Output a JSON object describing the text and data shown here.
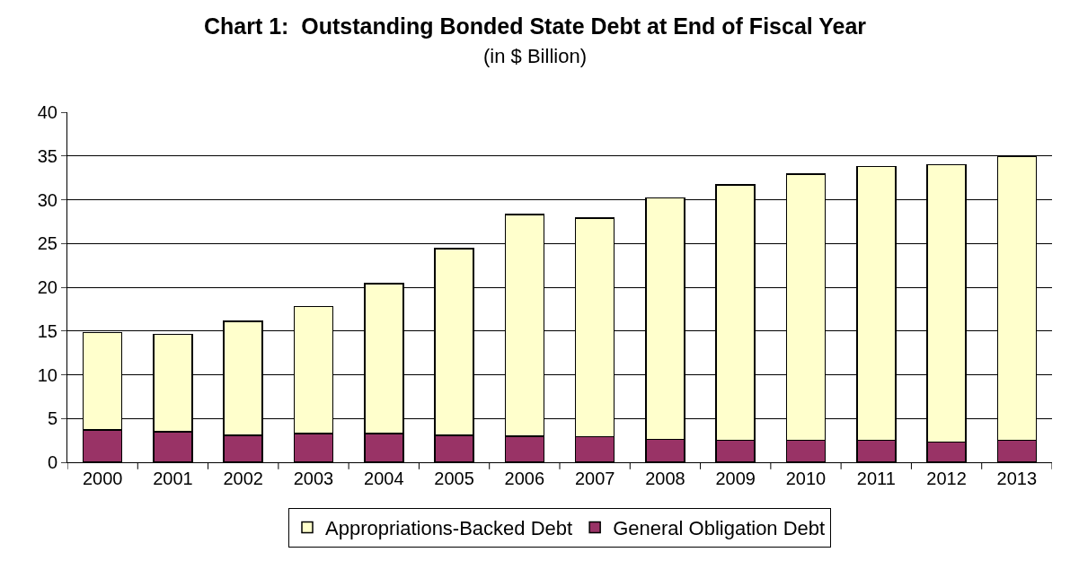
{
  "chart_data": {
    "type": "bar",
    "title": "Chart 1:  Outstanding Bonded State Debt at End of Fiscal Year",
    "subtitle": "(in $ Billion)",
    "categories": [
      "2000",
      "2001",
      "2002",
      "2003",
      "2004",
      "2005",
      "2006",
      "2007",
      "2008",
      "2009",
      "2010",
      "2011",
      "2012",
      "2013"
    ],
    "stacked": true,
    "series": [
      {
        "name": "General Obligation Debt",
        "color": "#993366",
        "values": [
          3.7,
          3.5,
          3.1,
          3.3,
          3.3,
          3.1,
          3.0,
          2.9,
          2.6,
          2.5,
          2.5,
          2.5,
          2.3,
          2.5
        ]
      },
      {
        "name": "Appropriations-Backed Debt",
        "color": "#ffffcc",
        "values": [
          11.1,
          11.1,
          13.0,
          14.5,
          17.1,
          21.3,
          25.3,
          25.0,
          27.6,
          29.2,
          30.4,
          31.3,
          31.7,
          32.5
        ]
      }
    ],
    "ylim": [
      0,
      40
    ],
    "yticks": [
      0,
      5,
      10,
      15,
      20,
      25,
      30,
      35,
      40
    ],
    "grid": "y",
    "legend": "bottom"
  }
}
